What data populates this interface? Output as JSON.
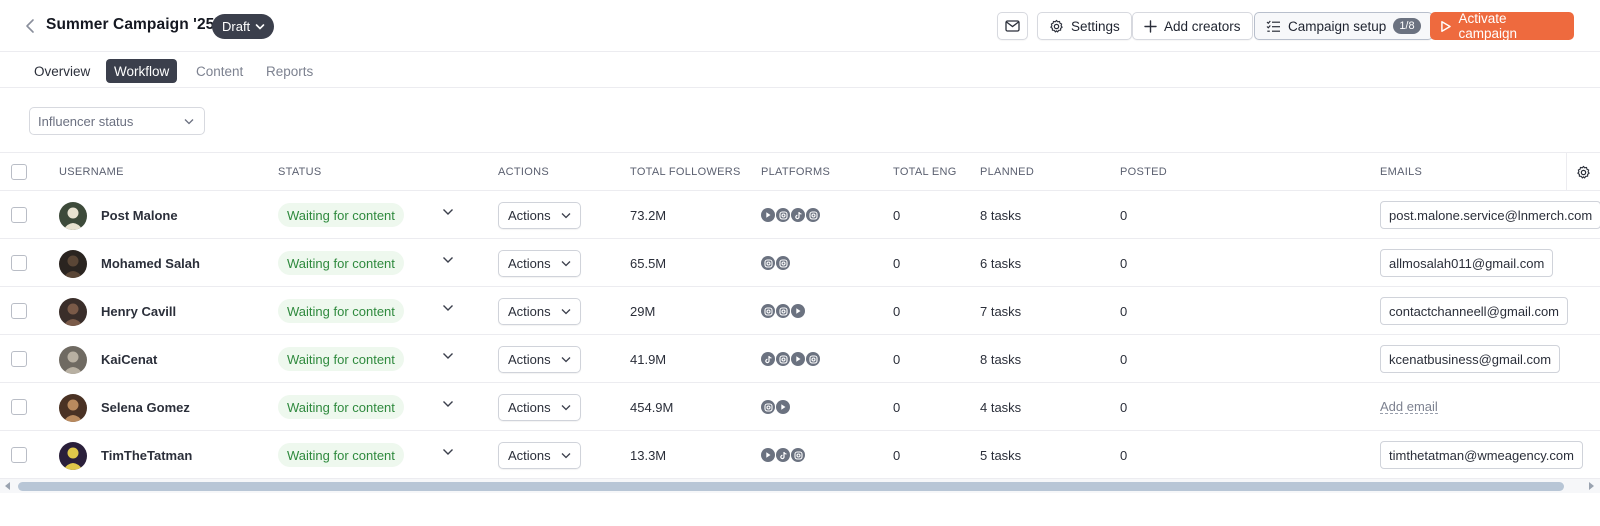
{
  "header": {
    "title": "Summer Campaign '25",
    "badge": "Draft",
    "settings_label": "Settings",
    "add_creators_label": "Add creators",
    "campaign_setup_label": "Campaign setup",
    "campaign_setup_count": "1/8",
    "activate_label": "Activate campaign",
    "accent_color": "#ee6a3e"
  },
  "tabs": [
    {
      "label": "Overview"
    },
    {
      "label": "Workflow"
    },
    {
      "label": "Content"
    },
    {
      "label": "Reports"
    }
  ],
  "filter": {
    "label": "Influencer status"
  },
  "columns": {
    "username": "USERNAME",
    "status": "STATUS",
    "actions": "ACTIONS",
    "total_followers": "TOTAL FOLLOWERS",
    "platforms": "PLATFORMS",
    "total_eng": "TOTAL ENG",
    "planned": "PLANNED",
    "posted": "POSTED",
    "emails": "EMAILS"
  },
  "rows": [
    {
      "username": "Post Malone",
      "status": "Waiting for content",
      "actions": "Actions",
      "followers": "73.2M",
      "platforms": [
        "youtube-icon",
        "instagram-icon",
        "tiktok-icon",
        "instagram-icon"
      ],
      "eng": "0",
      "planned": "8 tasks",
      "posted": "0",
      "email": "post.malone.service@lnmerch.com"
    },
    {
      "username": "Mohamed Salah",
      "status": "Waiting for content",
      "actions": "Actions",
      "followers": "65.5M",
      "platforms": [
        "instagram-icon",
        "instagram-icon"
      ],
      "eng": "0",
      "planned": "6 tasks",
      "posted": "0",
      "email": "allmosalah011@gmail.com"
    },
    {
      "username": "Henry Cavill",
      "status": "Waiting for content",
      "actions": "Actions",
      "followers": "29M",
      "platforms": [
        "instagram-icon",
        "instagram-icon",
        "youtube-icon"
      ],
      "eng": "0",
      "planned": "7 tasks",
      "posted": "0",
      "email": "contactchanneell@gmail.com"
    },
    {
      "username": "KaiCenat",
      "status": "Waiting for content",
      "actions": "Actions",
      "followers": "41.9M",
      "platforms": [
        "tiktok-icon",
        "instagram-icon",
        "youtube-icon",
        "instagram-icon"
      ],
      "eng": "0",
      "planned": "8 tasks",
      "posted": "0",
      "email": "kcenatbusiness@gmail.com"
    },
    {
      "username": "Selena Gomez",
      "status": "Waiting for content",
      "actions": "Actions",
      "followers": "454.9M",
      "platforms": [
        "instagram-icon",
        "youtube-icon"
      ],
      "eng": "0",
      "planned": "4 tasks",
      "posted": "0",
      "email": "",
      "add_email_label": "Add email"
    },
    {
      "username": "TimTheTatman",
      "status": "Waiting for content",
      "actions": "Actions",
      "followers": "13.3M",
      "platforms": [
        "youtube-icon",
        "tiktok-icon",
        "instagram-icon"
      ],
      "eng": "0",
      "planned": "5 tasks",
      "posted": "0",
      "email": "timthetatman@wmeagency.com"
    }
  ]
}
